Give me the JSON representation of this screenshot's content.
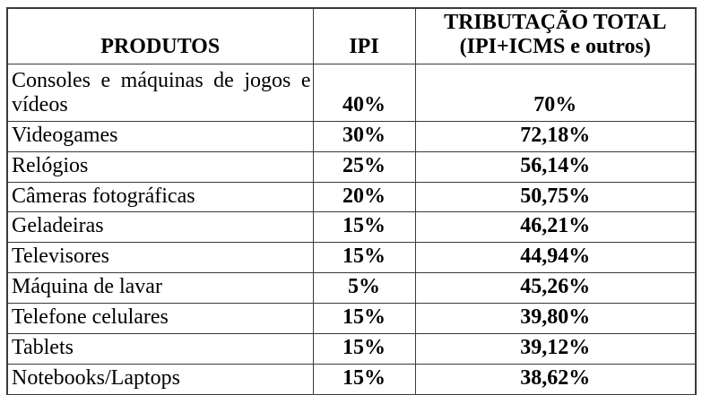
{
  "table": {
    "border_color": "#3a3a3a",
    "text_color": "#000000",
    "background_color": "#ffffff",
    "headers": {
      "produtos": "PRODUTOS",
      "ipi": "IPI",
      "total_line1": "TRIBUTAÇÃO TOTAL",
      "total_line2": "(IPI+ICMS e outros)"
    },
    "rows": [
      {
        "produto_lines": [
          "Consoles e máquinas de jogos e",
          "vídeos"
        ],
        "ipi": "40%",
        "total": "70%"
      },
      {
        "produto_lines": [
          "Videogames"
        ],
        "ipi": "30%",
        "total": "72,18%"
      },
      {
        "produto_lines": [
          "Relógios"
        ],
        "ipi": "25%",
        "total": "56,14%"
      },
      {
        "produto_lines": [
          "Câmeras fotográficas"
        ],
        "ipi": "20%",
        "total": "50,75%"
      },
      {
        "produto_lines": [
          "Geladeiras"
        ],
        "ipi": "15%",
        "total": "46,21%"
      },
      {
        "produto_lines": [
          "Televisores"
        ],
        "ipi": "15%",
        "total": "44,94%"
      },
      {
        "produto_lines": [
          "Máquina de lavar"
        ],
        "ipi": "5%",
        "total": "45,26%"
      },
      {
        "produto_lines": [
          "Telefone celulares"
        ],
        "ipi": "15%",
        "total": "39,80%"
      },
      {
        "produto_lines": [
          "Tablets"
        ],
        "ipi": "15%",
        "total": "39,12%"
      },
      {
        "produto_lines": [
          "Notebooks/Laptops"
        ],
        "ipi": "15%",
        "total": "38,62%"
      }
    ]
  }
}
